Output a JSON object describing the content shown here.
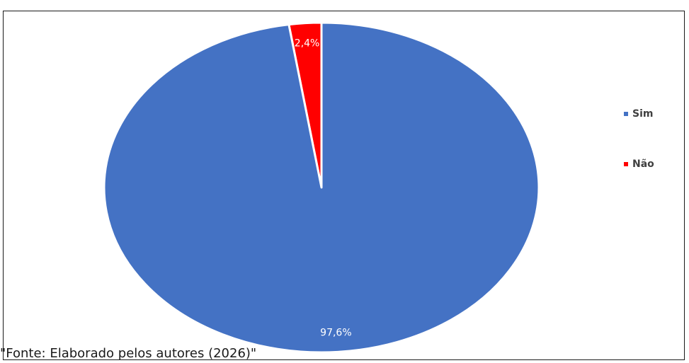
{
  "chart_data": {
    "type": "pie",
    "slices": [
      {
        "label": "Sim",
        "value": 97.6,
        "value_label": "97,6%",
        "color": "#4472C4"
      },
      {
        "label": "Não",
        "value": 2.4,
        "value_label": "2,4%",
        "color": "#FF0000"
      }
    ],
    "start": "top",
    "direction": "counterclockwise",
    "legend": {
      "position": "right"
    }
  },
  "source_note": "\"Fonte: Elaborado pelos autores (2026)\""
}
